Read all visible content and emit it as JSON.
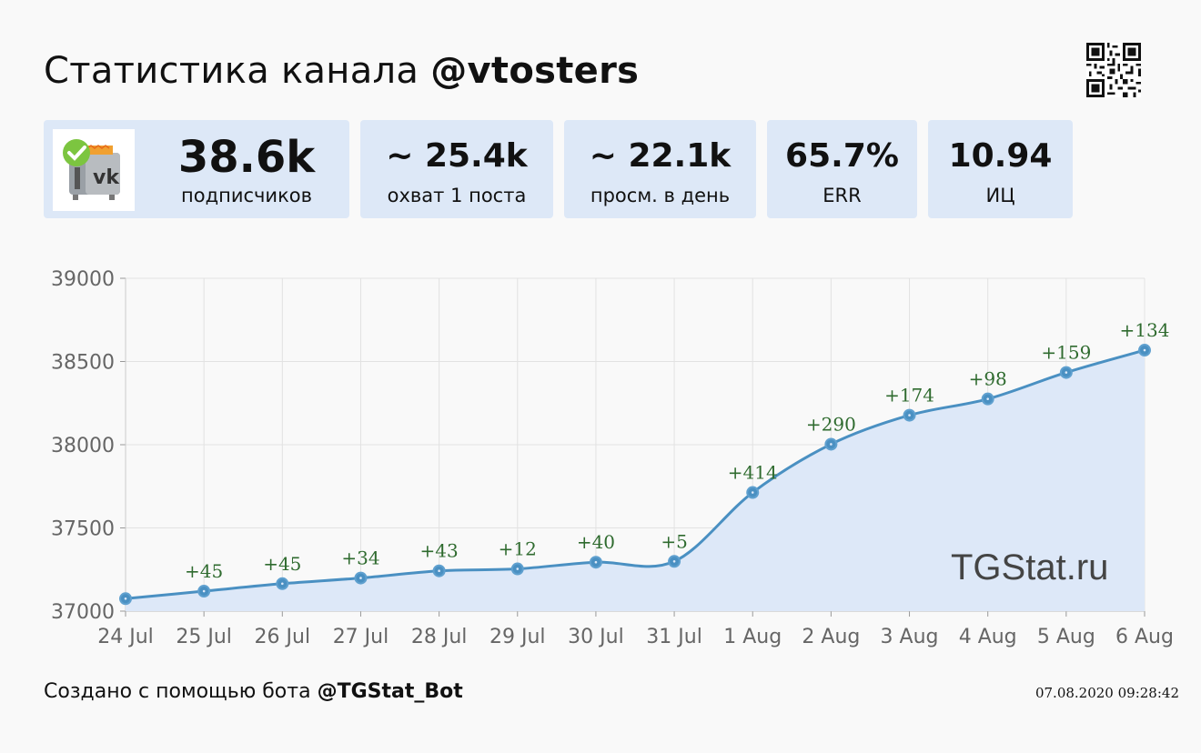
{
  "header": {
    "title_prefix": "Статистика канала",
    "channel": "@vtosters"
  },
  "stats": [
    {
      "value": "38.6k",
      "label": "подписчиков"
    },
    {
      "value": "~ 25.4k",
      "label": "охват 1 поста"
    },
    {
      "value": "~ 22.1k",
      "label": "просм. в день"
    },
    {
      "value": "65.7%",
      "label": "ERR"
    },
    {
      "value": "10.94",
      "label": "ИЦ"
    }
  ],
  "colors": {
    "card_bg": "#dde8f7",
    "line": "#4a90c2",
    "area": "#dde8f8",
    "delta_text": "#2f6b2f"
  },
  "icons": {
    "avatar": "channel-avatar-icon",
    "qr": "qr-code-icon"
  },
  "watermark": "TGStat.ru",
  "footer": {
    "created_prefix": "Создано с помощью бота",
    "bot": "@TGStat_Bot",
    "timestamp": "07.08.2020 09:28:42"
  },
  "chart_data": {
    "type": "area",
    "title": "",
    "xlabel": "",
    "ylabel": "",
    "x": [
      "24 Jul",
      "25 Jul",
      "26 Jul",
      "27 Jul",
      "28 Jul",
      "29 Jul",
      "30 Jul",
      "31 Jul",
      "1 Aug",
      "2 Aug",
      "3 Aug",
      "4 Aug",
      "5 Aug",
      "6 Aug"
    ],
    "values": [
      37075,
      37120,
      37165,
      37199,
      37242,
      37254,
      37294,
      37299,
      37713,
      38003,
      38177,
      38275,
      38434,
      38568
    ],
    "deltas": [
      "",
      "+45",
      "+45",
      "+34",
      "+43",
      "+12",
      "+40",
      "+5",
      "+414",
      "+290",
      "+174",
      "+98",
      "+159",
      "+134"
    ],
    "ylim": [
      37000,
      39000
    ],
    "yticks": [
      37000,
      37500,
      38000,
      38500,
      39000
    ],
    "grid": true,
    "legend": "none"
  }
}
